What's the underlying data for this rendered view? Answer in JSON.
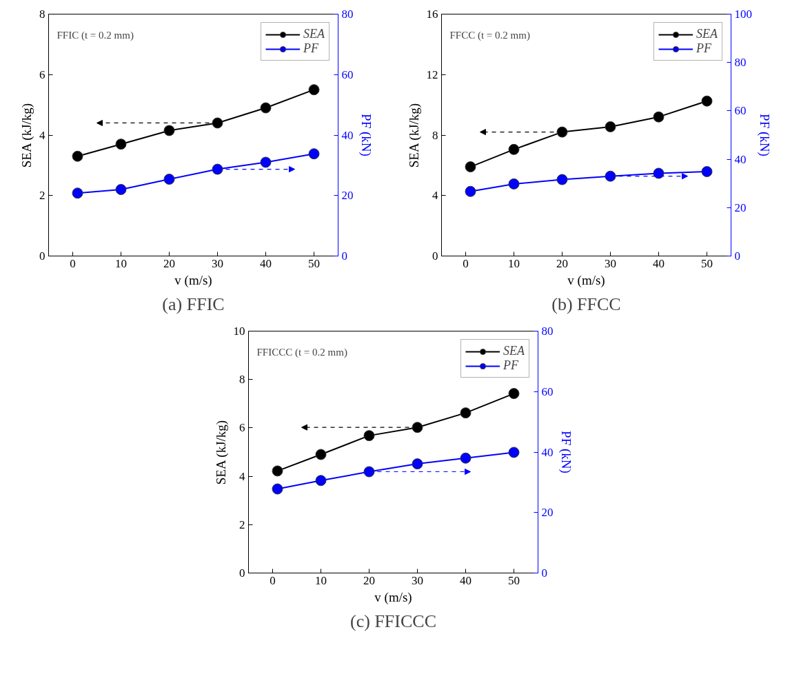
{
  "chart_data": [
    {
      "type": "line",
      "title": "(a) FFIC",
      "xlabel": "v (m/s)",
      "ylabel": "SEA (kJ/kg)",
      "y2label": "PF (kN)",
      "annotations": [
        "FFIC (t = 0.2 mm)"
      ],
      "x": [
        1,
        10,
        20,
        30,
        40,
        50
      ],
      "xlim": [
        -5,
        55
      ],
      "xticks": [
        0,
        10,
        20,
        30,
        40,
        50
      ],
      "ylim": [
        0,
        8
      ],
      "yticks": [
        0,
        2,
        4,
        6,
        8
      ],
      "y2lim": [
        0,
        80
      ],
      "y2ticks": [
        0,
        20,
        40,
        60,
        80
      ],
      "grid": false,
      "legend": "top right",
      "marker": "circle",
      "line_style": "solid",
      "series": [
        {
          "name": "SEA",
          "color": "#000000",
          "values": [
            3.3,
            3.7,
            4.15,
            4.4,
            4.9,
            5.5
          ]
        },
        {
          "name": "PF",
          "color": "#0000ff",
          "axis": "y2",
          "values": [
            20.8,
            22,
            25.4,
            28.7,
            31,
            33.8
          ]
        }
      ]
    },
    {
      "type": "line",
      "title": "(b) FFCC",
      "xlabel": "v (m/s)",
      "ylabel": "SEA (kJ/kg)",
      "y2label": "PF (kN)",
      "annotations": [
        "FFCC (t = 0.2 mm)"
      ],
      "x": [
        1,
        10,
        20,
        30,
        40,
        50
      ],
      "xlim": [
        -5,
        55
      ],
      "xticks": [
        0,
        10,
        20,
        30,
        40,
        50
      ],
      "ylim": [
        0,
        16
      ],
      "yticks": [
        0,
        4,
        8,
        12,
        16
      ],
      "y2lim": [
        0,
        100
      ],
      "y2ticks": [
        0,
        20,
        40,
        60,
        80,
        100
      ],
      "grid": false,
      "legend": "top right",
      "marker": "circle",
      "line_style": "solid",
      "series": [
        {
          "name": "SEA",
          "color": "#000000",
          "values": [
            5.9,
            7.05,
            8.2,
            8.55,
            9.2,
            10.25
          ]
        },
        {
          "name": "PF",
          "color": "#0000ff",
          "axis": "y2",
          "values": [
            26.7,
            29.8,
            31.6,
            33,
            34.2,
            34.9
          ]
        }
      ]
    },
    {
      "type": "line",
      "title": "(c) FFICCC",
      "xlabel": "v (m/s)",
      "ylabel": "SEA (kJ/kg)",
      "y2label": "PF (kN)",
      "annotations": [
        "FFICCC (t = 0.2 mm)"
      ],
      "x": [
        1,
        10,
        20,
        30,
        40,
        50
      ],
      "xlim": [
        -5,
        55
      ],
      "xticks": [
        0,
        10,
        20,
        30,
        40,
        50
      ],
      "ylim": [
        0,
        10
      ],
      "yticks": [
        0,
        2,
        4,
        6,
        8,
        10
      ],
      "y2lim": [
        0,
        80
      ],
      "y2ticks": [
        0,
        20,
        40,
        60,
        80
      ],
      "grid": false,
      "legend": "top right",
      "marker": "circle",
      "line_style": "solid",
      "series": [
        {
          "name": "SEA",
          "color": "#000000",
          "values": [
            4.22,
            4.9,
            5.68,
            6.02,
            6.62,
            7.42
          ]
        },
        {
          "name": "PF",
          "color": "#0000ff",
          "axis": "y2",
          "values": [
            27.8,
            30.6,
            33.5,
            36.1,
            38,
            39.9
          ]
        }
      ]
    }
  ]
}
